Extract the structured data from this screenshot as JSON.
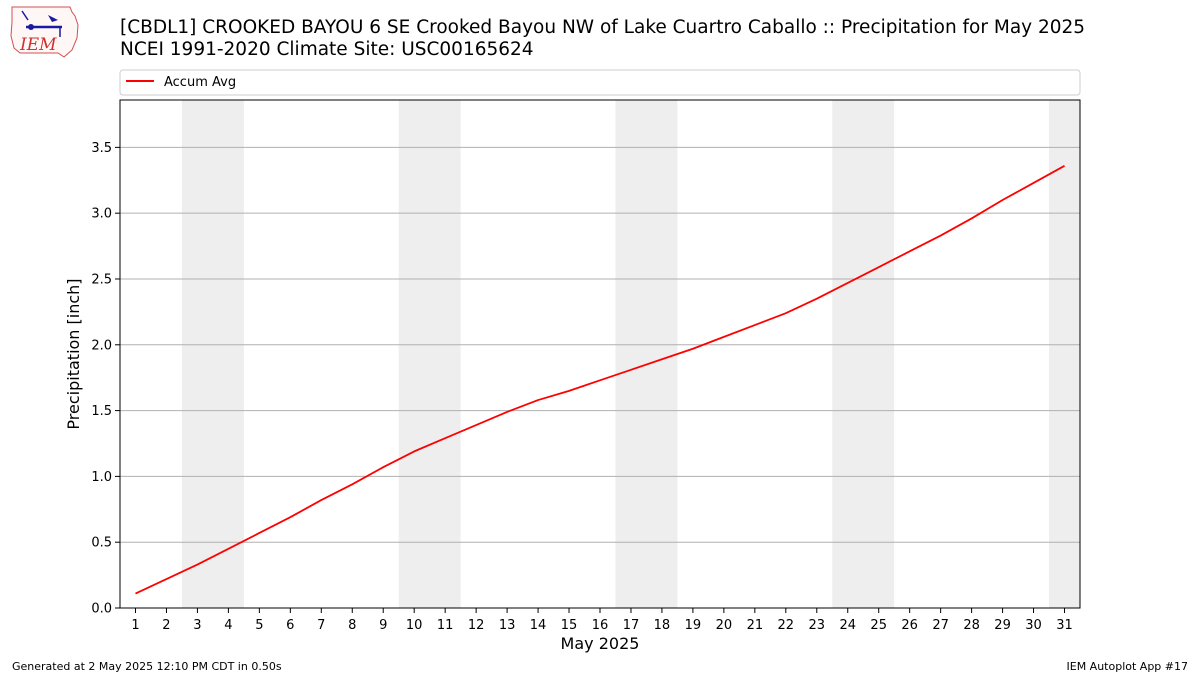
{
  "header": {
    "title_line1": "[CBDL1] CROOKED BAYOU 6 SE Crooked Bayou NW of Lake Cuartro Caballo :: Precipitation for May 2025",
    "title_line2": "NCEI 1991-2020 Climate Site: USC00165624"
  },
  "logo": {
    "text": "IEM"
  },
  "footer": {
    "left": "Generated at 2 May 2025 12:10 PM CDT in 0.50s",
    "right": "IEM Autoplot App #17"
  },
  "chart_data": {
    "type": "line",
    "xlabel": "May 2025",
    "ylabel": "Precipitation [inch]",
    "xlim": [
      0.5,
      31.5
    ],
    "ylim": [
      0,
      3.86
    ],
    "yticks": [
      0.0,
      0.5,
      1.0,
      1.5,
      2.0,
      2.5,
      3.0,
      3.5
    ],
    "ytick_labels": [
      "0.0",
      "0.5",
      "1.0",
      "1.5",
      "2.0",
      "2.5",
      "3.0",
      "3.5"
    ],
    "categories": [
      "1",
      "2",
      "3",
      "4",
      "5",
      "6",
      "7",
      "8",
      "9",
      "10",
      "11",
      "12",
      "13",
      "14",
      "15",
      "16",
      "17",
      "18",
      "19",
      "20",
      "21",
      "22",
      "23",
      "24",
      "25",
      "26",
      "27",
      "28",
      "29",
      "30",
      "31"
    ],
    "weekend_days": [
      [
        3,
        4
      ],
      [
        10,
        11
      ],
      [
        17,
        18
      ],
      [
        24,
        25
      ],
      [
        31,
        31
      ]
    ],
    "grid": "horizontal",
    "legend_position": "top",
    "series": [
      {
        "name": "Accum Avg",
        "color": "#ff0000",
        "x": [
          1,
          2,
          3,
          4,
          5,
          6,
          7,
          8,
          9,
          10,
          11,
          12,
          13,
          14,
          15,
          16,
          17,
          18,
          19,
          20,
          21,
          22,
          23,
          24,
          25,
          26,
          27,
          28,
          29,
          30,
          31
        ],
        "values": [
          0.11,
          0.22,
          0.33,
          0.45,
          0.57,
          0.69,
          0.82,
          0.94,
          1.07,
          1.19,
          1.29,
          1.39,
          1.49,
          1.58,
          1.65,
          1.73,
          1.81,
          1.89,
          1.97,
          2.06,
          2.15,
          2.24,
          2.35,
          2.47,
          2.59,
          2.71,
          2.83,
          2.96,
          3.1,
          3.23,
          3.36
        ]
      }
    ]
  }
}
